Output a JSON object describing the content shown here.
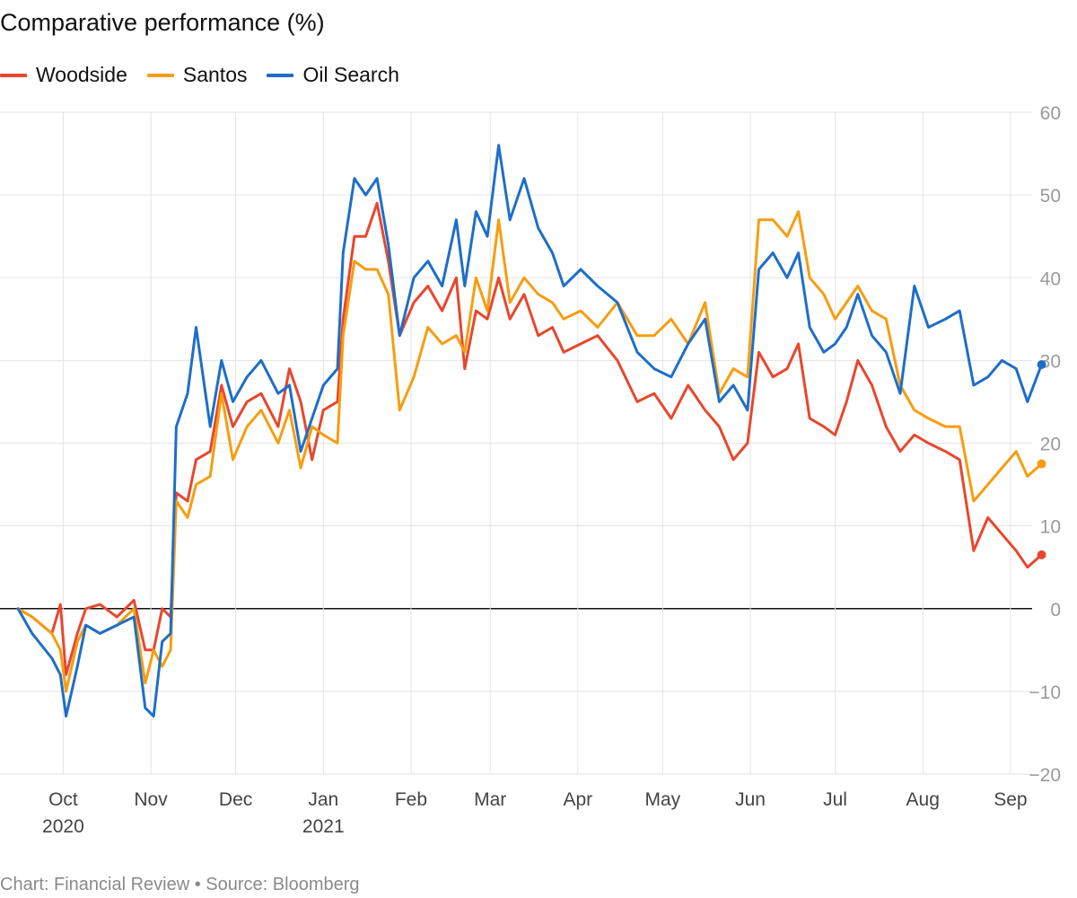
{
  "chart_data": {
    "type": "line",
    "title": "Comparative performance (%)",
    "xlabel": "",
    "ylabel": "",
    "ylim": [
      -20,
      60
    ],
    "y_ticks": [
      60,
      50,
      40,
      30,
      20,
      10,
      0,
      -10,
      -20
    ],
    "y_tick_labels": [
      "60",
      "50",
      "40",
      "30",
      "20",
      "10",
      "0",
      "−10",
      "−20"
    ],
    "x_range": [
      "2020-09-15",
      "2021-09-15"
    ],
    "x_ticks": [
      {
        "date": "2020-10-01",
        "label": "Oct",
        "sublabel": "2020"
      },
      {
        "date": "2020-11-01",
        "label": "Nov",
        "sublabel": ""
      },
      {
        "date": "2020-12-01",
        "label": "Dec",
        "sublabel": ""
      },
      {
        "date": "2021-01-01",
        "label": "Jan",
        "sublabel": "2021"
      },
      {
        "date": "2021-02-01",
        "label": "Feb",
        "sublabel": ""
      },
      {
        "date": "2021-03-01",
        "label": "Mar",
        "sublabel": ""
      },
      {
        "date": "2021-04-01",
        "label": "Apr",
        "sublabel": ""
      },
      {
        "date": "2021-05-01",
        "label": "May",
        "sublabel": ""
      },
      {
        "date": "2021-06-01",
        "label": "Jun",
        "sublabel": ""
      },
      {
        "date": "2021-07-01",
        "label": "Jul",
        "sublabel": ""
      },
      {
        "date": "2021-08-01",
        "label": "Aug",
        "sublabel": ""
      },
      {
        "date": "2021-09-01",
        "label": "Sep",
        "sublabel": ""
      }
    ],
    "grid": true,
    "legend_position": "top-left",
    "series": [
      {
        "name": "Woodside",
        "color": "#e8472e",
        "points": [
          [
            "2020-09-15",
            0
          ],
          [
            "2020-09-20",
            -1
          ],
          [
            "2020-09-27",
            -3
          ],
          [
            "2020-09-30",
            0.5
          ],
          [
            "2020-10-02",
            -8
          ],
          [
            "2020-10-06",
            -3
          ],
          [
            "2020-10-09",
            0
          ],
          [
            "2020-10-14",
            0.5
          ],
          [
            "2020-10-20",
            -1
          ],
          [
            "2020-10-26",
            1
          ],
          [
            "2020-10-30",
            -5
          ],
          [
            "2020-11-02",
            -5
          ],
          [
            "2020-11-05",
            0
          ],
          [
            "2020-11-08",
            -1
          ],
          [
            "2020-11-10",
            14
          ],
          [
            "2020-11-14",
            13
          ],
          [
            "2020-11-17",
            18
          ],
          [
            "2020-11-22",
            19
          ],
          [
            "2020-11-26",
            27
          ],
          [
            "2020-11-30",
            22
          ],
          [
            "2020-12-05",
            25
          ],
          [
            "2020-12-10",
            26
          ],
          [
            "2020-12-16",
            22
          ],
          [
            "2020-12-20",
            29
          ],
          [
            "2020-12-24",
            25
          ],
          [
            "2020-12-28",
            18
          ],
          [
            "2021-01-01",
            24
          ],
          [
            "2021-01-06",
            25
          ],
          [
            "2021-01-08",
            35
          ],
          [
            "2021-01-12",
            45
          ],
          [
            "2021-01-16",
            45
          ],
          [
            "2021-01-20",
            49
          ],
          [
            "2021-01-24",
            42
          ],
          [
            "2021-01-28",
            33
          ],
          [
            "2021-02-02",
            37
          ],
          [
            "2021-02-07",
            39
          ],
          [
            "2021-02-12",
            36
          ],
          [
            "2021-02-17",
            40
          ],
          [
            "2021-02-20",
            29
          ],
          [
            "2021-02-24",
            36
          ],
          [
            "2021-02-28",
            35
          ],
          [
            "2021-03-04",
            40
          ],
          [
            "2021-03-08",
            35
          ],
          [
            "2021-03-13",
            38
          ],
          [
            "2021-03-18",
            33
          ],
          [
            "2021-03-23",
            34
          ],
          [
            "2021-03-27",
            31
          ],
          [
            "2021-04-02",
            32
          ],
          [
            "2021-04-08",
            33
          ],
          [
            "2021-04-15",
            30
          ],
          [
            "2021-04-22",
            25
          ],
          [
            "2021-04-28",
            26
          ],
          [
            "2021-05-04",
            23
          ],
          [
            "2021-05-10",
            27
          ],
          [
            "2021-05-16",
            24
          ],
          [
            "2021-05-21",
            22
          ],
          [
            "2021-05-26",
            18
          ],
          [
            "2021-05-31",
            20
          ],
          [
            "2021-06-04",
            31
          ],
          [
            "2021-06-09",
            28
          ],
          [
            "2021-06-14",
            29
          ],
          [
            "2021-06-18",
            32
          ],
          [
            "2021-06-22",
            23
          ],
          [
            "2021-06-27",
            22
          ],
          [
            "2021-07-01",
            21
          ],
          [
            "2021-07-05",
            25
          ],
          [
            "2021-07-09",
            30
          ],
          [
            "2021-07-14",
            27
          ],
          [
            "2021-07-19",
            22
          ],
          [
            "2021-07-24",
            19
          ],
          [
            "2021-07-29",
            21
          ],
          [
            "2021-08-03",
            20
          ],
          [
            "2021-08-09",
            19
          ],
          [
            "2021-08-14",
            18
          ],
          [
            "2021-08-19",
            7
          ],
          [
            "2021-08-24",
            11
          ],
          [
            "2021-08-29",
            9
          ],
          [
            "2021-09-03",
            7
          ],
          [
            "2021-09-07",
            5
          ],
          [
            "2021-09-12",
            6.5
          ]
        ]
      },
      {
        "name": "Santos",
        "color": "#f79d10",
        "points": [
          [
            "2020-09-15",
            0
          ],
          [
            "2020-09-20",
            -1
          ],
          [
            "2020-09-27",
            -3
          ],
          [
            "2020-09-30",
            -5
          ],
          [
            "2020-10-02",
            -10
          ],
          [
            "2020-10-06",
            -4
          ],
          [
            "2020-10-09",
            -2
          ],
          [
            "2020-10-14",
            -3
          ],
          [
            "2020-10-20",
            -2
          ],
          [
            "2020-10-26",
            0
          ],
          [
            "2020-10-30",
            -9
          ],
          [
            "2020-11-02",
            -5
          ],
          [
            "2020-11-05",
            -7
          ],
          [
            "2020-11-08",
            -5
          ],
          [
            "2020-11-10",
            13
          ],
          [
            "2020-11-14",
            11
          ],
          [
            "2020-11-17",
            15
          ],
          [
            "2020-11-22",
            16
          ],
          [
            "2020-11-26",
            26
          ],
          [
            "2020-11-30",
            18
          ],
          [
            "2020-12-05",
            22
          ],
          [
            "2020-12-10",
            24
          ],
          [
            "2020-12-16",
            20
          ],
          [
            "2020-12-20",
            24
          ],
          [
            "2020-12-24",
            17
          ],
          [
            "2020-12-28",
            22
          ],
          [
            "2021-01-01",
            21
          ],
          [
            "2021-01-06",
            20
          ],
          [
            "2021-01-08",
            33
          ],
          [
            "2021-01-12",
            42
          ],
          [
            "2021-01-16",
            41
          ],
          [
            "2021-01-20",
            41
          ],
          [
            "2021-01-24",
            38
          ],
          [
            "2021-01-28",
            24
          ],
          [
            "2021-02-02",
            28
          ],
          [
            "2021-02-07",
            34
          ],
          [
            "2021-02-12",
            32
          ],
          [
            "2021-02-17",
            33
          ],
          [
            "2021-02-20",
            31
          ],
          [
            "2021-02-24",
            40
          ],
          [
            "2021-02-28",
            36
          ],
          [
            "2021-03-04",
            47
          ],
          [
            "2021-03-08",
            37
          ],
          [
            "2021-03-13",
            40
          ],
          [
            "2021-03-18",
            38
          ],
          [
            "2021-03-23",
            37
          ],
          [
            "2021-03-27",
            35
          ],
          [
            "2021-04-02",
            36
          ],
          [
            "2021-04-08",
            34
          ],
          [
            "2021-04-15",
            37
          ],
          [
            "2021-04-22",
            33
          ],
          [
            "2021-04-28",
            33
          ],
          [
            "2021-05-04",
            35
          ],
          [
            "2021-05-10",
            32
          ],
          [
            "2021-05-16",
            37
          ],
          [
            "2021-05-21",
            26
          ],
          [
            "2021-05-26",
            29
          ],
          [
            "2021-05-31",
            28
          ],
          [
            "2021-06-04",
            47
          ],
          [
            "2021-06-09",
            47
          ],
          [
            "2021-06-14",
            45
          ],
          [
            "2021-06-18",
            48
          ],
          [
            "2021-06-22",
            40
          ],
          [
            "2021-06-27",
            38
          ],
          [
            "2021-07-01",
            35
          ],
          [
            "2021-07-05",
            37
          ],
          [
            "2021-07-09",
            39
          ],
          [
            "2021-07-14",
            36
          ],
          [
            "2021-07-19",
            35
          ],
          [
            "2021-07-24",
            27
          ],
          [
            "2021-07-29",
            24
          ],
          [
            "2021-08-03",
            23
          ],
          [
            "2021-08-09",
            22
          ],
          [
            "2021-08-14",
            22
          ],
          [
            "2021-08-19",
            13
          ],
          [
            "2021-08-24",
            15
          ],
          [
            "2021-08-29",
            17
          ],
          [
            "2021-09-03",
            19
          ],
          [
            "2021-09-07",
            16
          ],
          [
            "2021-09-12",
            17.5
          ]
        ]
      },
      {
        "name": "Oil Search",
        "color": "#1e6ec8",
        "points": [
          [
            "2020-09-15",
            0
          ],
          [
            "2020-09-20",
            -3
          ],
          [
            "2020-09-27",
            -6
          ],
          [
            "2020-09-30",
            -8
          ],
          [
            "2020-10-02",
            -13
          ],
          [
            "2020-10-06",
            -7
          ],
          [
            "2020-10-09",
            -2
          ],
          [
            "2020-10-14",
            -3
          ],
          [
            "2020-10-20",
            -2
          ],
          [
            "2020-10-26",
            -1
          ],
          [
            "2020-10-30",
            -12
          ],
          [
            "2020-11-02",
            -13
          ],
          [
            "2020-11-05",
            -4
          ],
          [
            "2020-11-08",
            -3
          ],
          [
            "2020-11-10",
            22
          ],
          [
            "2020-11-14",
            26
          ],
          [
            "2020-11-17",
            34
          ],
          [
            "2020-11-22",
            22
          ],
          [
            "2020-11-26",
            30
          ],
          [
            "2020-11-30",
            25
          ],
          [
            "2020-12-05",
            28
          ],
          [
            "2020-12-10",
            30
          ],
          [
            "2020-12-16",
            26
          ],
          [
            "2020-12-20",
            27
          ],
          [
            "2020-12-24",
            19
          ],
          [
            "2020-12-28",
            23
          ],
          [
            "2021-01-01",
            27
          ],
          [
            "2021-01-06",
            29
          ],
          [
            "2021-01-08",
            43
          ],
          [
            "2021-01-12",
            52
          ],
          [
            "2021-01-16",
            50
          ],
          [
            "2021-01-20",
            52
          ],
          [
            "2021-01-24",
            44
          ],
          [
            "2021-01-28",
            33
          ],
          [
            "2021-02-02",
            40
          ],
          [
            "2021-02-07",
            42
          ],
          [
            "2021-02-12",
            39
          ],
          [
            "2021-02-17",
            47
          ],
          [
            "2021-02-20",
            39
          ],
          [
            "2021-02-24",
            48
          ],
          [
            "2021-02-28",
            45
          ],
          [
            "2021-03-04",
            56
          ],
          [
            "2021-03-08",
            47
          ],
          [
            "2021-03-13",
            52
          ],
          [
            "2021-03-18",
            46
          ],
          [
            "2021-03-23",
            43
          ],
          [
            "2021-03-27",
            39
          ],
          [
            "2021-04-02",
            41
          ],
          [
            "2021-04-08",
            39
          ],
          [
            "2021-04-15",
            37
          ],
          [
            "2021-04-22",
            31
          ],
          [
            "2021-04-28",
            29
          ],
          [
            "2021-05-04",
            28
          ],
          [
            "2021-05-10",
            32
          ],
          [
            "2021-05-16",
            35
          ],
          [
            "2021-05-21",
            25
          ],
          [
            "2021-05-26",
            27
          ],
          [
            "2021-05-31",
            24
          ],
          [
            "2021-06-04",
            41
          ],
          [
            "2021-06-09",
            43
          ],
          [
            "2021-06-14",
            40
          ],
          [
            "2021-06-18",
            43
          ],
          [
            "2021-06-22",
            34
          ],
          [
            "2021-06-27",
            31
          ],
          [
            "2021-07-01",
            32
          ],
          [
            "2021-07-05",
            34
          ],
          [
            "2021-07-09",
            38
          ],
          [
            "2021-07-14",
            33
          ],
          [
            "2021-07-19",
            31
          ],
          [
            "2021-07-24",
            26
          ],
          [
            "2021-07-29",
            39
          ],
          [
            "2021-08-03",
            34
          ],
          [
            "2021-08-09",
            35
          ],
          [
            "2021-08-14",
            36
          ],
          [
            "2021-08-19",
            27
          ],
          [
            "2021-08-24",
            28
          ],
          [
            "2021-08-29",
            30
          ],
          [
            "2021-09-03",
            29
          ],
          [
            "2021-09-07",
            25
          ],
          [
            "2021-09-12",
            29.5
          ]
        ]
      }
    ]
  },
  "footer": {
    "text": "Chart: Financial Review • Source: Bloomberg"
  }
}
